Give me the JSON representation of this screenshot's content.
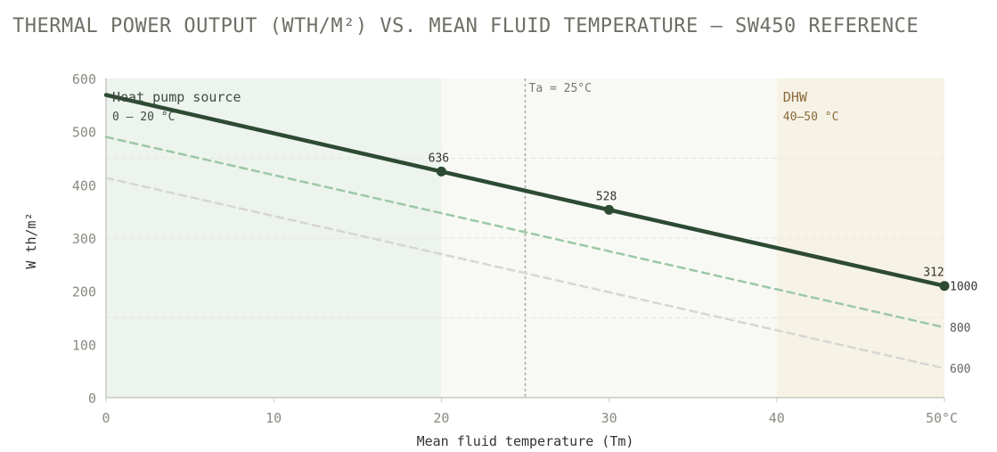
{
  "title": "THERMAL POWER OUTPUT (WTH/M²) VS. MEAN FLUID TEMPERATURE — SW450 REFERENCE",
  "chart_data": {
    "type": "line",
    "xlabel": "Mean fluid temperature (Tm)",
    "ylabel": "W th/m²",
    "xlim": [
      0,
      50
    ],
    "ylim": [
      0,
      600
    ],
    "x_ticks": [
      "0",
      "10",
      "20",
      "30",
      "40",
      "50°C"
    ],
    "y_ticks": [
      "0",
      "100",
      "200",
      "300",
      "400",
      "500",
      "600"
    ],
    "grid": "horizontal, dashed at 150/300/450",
    "zones": [
      {
        "title": "Heat pump source",
        "subtitle": "0 – 20 °C",
        "x_range": [
          0,
          20
        ],
        "color": "#edf3ed"
      },
      {
        "title": "DHW",
        "subtitle": "40–50 °C",
        "x_range": [
          40,
          50
        ],
        "color": "#f7f2e6"
      }
    ],
    "reference_line": {
      "x": 25,
      "label": "Ta = 25°C"
    },
    "series": [
      {
        "name": "1000",
        "style": "solid",
        "color": "#2d4a32",
        "points": [
          [
            0,
            569
          ],
          [
            20,
            425
          ],
          [
            30,
            353
          ],
          [
            50,
            210
          ]
        ]
      },
      {
        "name": "800",
        "style": "dashed",
        "color": "#9cc8a6",
        "points": [
          [
            0,
            490
          ],
          [
            50,
            132
          ]
        ]
      },
      {
        "name": "600",
        "style": "dashed",
        "color": "#d6d6d2",
        "points": [
          [
            0,
            413
          ],
          [
            50,
            55
          ]
        ]
      }
    ],
    "data_labels": [
      {
        "x": 20,
        "y": 425,
        "text": "636"
      },
      {
        "x": 30,
        "y": 353,
        "text": "528"
      },
      {
        "x": 50,
        "y": 210,
        "text": "312"
      }
    ]
  }
}
